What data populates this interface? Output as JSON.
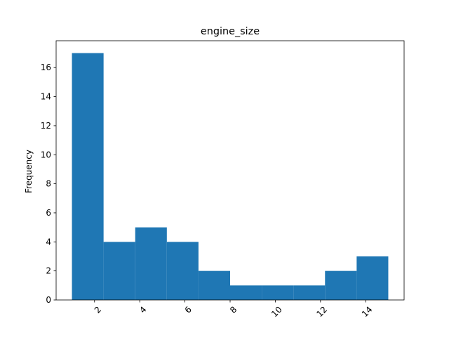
{
  "chart_data": {
    "type": "bar",
    "title": "engine_size",
    "xlabel": "",
    "ylabel": "Frequency",
    "bin_edges": [
      1.0,
      2.4,
      3.8,
      5.2,
      6.6,
      8.0,
      9.4,
      10.8,
      12.2,
      13.6,
      15.0
    ],
    "values": [
      17,
      4,
      5,
      4,
      2,
      1,
      1,
      1,
      2,
      3
    ],
    "xlim": [
      0.3,
      15.7
    ],
    "ylim": [
      0,
      17.85
    ],
    "xticks": [
      2,
      4,
      6,
      8,
      10,
      12,
      14
    ],
    "yticks": [
      0,
      2,
      4,
      6,
      8,
      10,
      12,
      14,
      16
    ],
    "xtick_rotation": 45,
    "bar_color": "#1f77b4",
    "grid": false,
    "legend": "none"
  }
}
